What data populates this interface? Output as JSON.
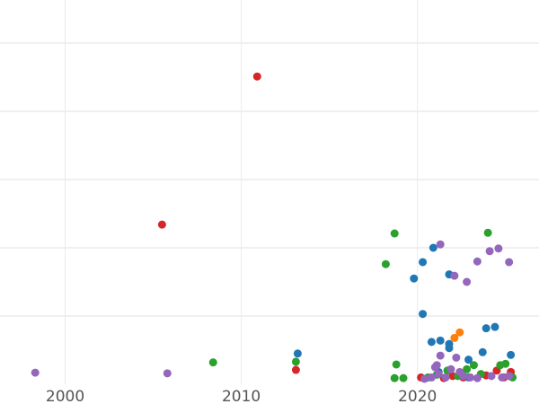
{
  "chart_data": {
    "type": "scatter",
    "title": "",
    "xlabel": "",
    "ylabel": "",
    "x_ticks": [
      "2000",
      "2010",
      "2020"
    ],
    "x_tick_values": [
      2000,
      2010,
      2020
    ],
    "xlim": [
      1996.3,
      2026.9
    ],
    "ylim": [
      -0.3,
      5.63
    ],
    "y_gridlines": [
      1,
      2,
      3,
      4,
      5
    ],
    "grid": true,
    "legend": "none",
    "series": [
      {
        "name": "red",
        "color": "#d62728",
        "points": [
          [
            2010.9,
            4.51
          ],
          [
            2005.5,
            2.34
          ],
          [
            2013.1,
            0.21
          ],
          [
            2020.2,
            0.1
          ],
          [
            2021.5,
            0.09
          ],
          [
            2022.0,
            0.12
          ],
          [
            2022.6,
            0.1
          ],
          [
            2023.9,
            0.13
          ],
          [
            2024.5,
            0.2
          ],
          [
            2025.3,
            0.18
          ],
          [
            2024.9,
            0.1
          ]
        ]
      },
      {
        "name": "green",
        "color": "#2ca02c",
        "points": [
          [
            2008.4,
            0.32
          ],
          [
            2013.1,
            0.33
          ],
          [
            2018.7,
            2.21
          ],
          [
            2018.2,
            1.76
          ],
          [
            2024.0,
            2.22
          ],
          [
            2018.8,
            0.29
          ],
          [
            2018.7,
            0.09
          ],
          [
            2019.2,
            0.09
          ],
          [
            2020.6,
            0.1
          ],
          [
            2021.7,
            0.2
          ],
          [
            2022.8,
            0.22
          ],
          [
            2023.2,
            0.28
          ],
          [
            2023.6,
            0.15
          ],
          [
            2024.7,
            0.28
          ],
          [
            2025.0,
            0.3
          ],
          [
            2025.4,
            0.1
          ],
          [
            2022.3,
            0.12
          ],
          [
            2021.1,
            0.14
          ]
        ]
      },
      {
        "name": "blue",
        "color": "#1f77b4",
        "points": [
          [
            2013.2,
            0.45
          ],
          [
            2020.9,
            2.0
          ],
          [
            2020.3,
            1.79
          ],
          [
            2019.8,
            1.55
          ],
          [
            2020.3,
            1.03
          ],
          [
            2021.8,
            1.61
          ],
          [
            2023.9,
            0.82
          ],
          [
            2024.4,
            0.84
          ],
          [
            2020.8,
            0.62
          ],
          [
            2021.3,
            0.64
          ],
          [
            2021.8,
            0.53
          ],
          [
            2021.8,
            0.59
          ],
          [
            2023.7,
            0.47
          ],
          [
            2022.9,
            0.36
          ],
          [
            2025.3,
            0.43
          ],
          [
            2021.2,
            0.18
          ],
          [
            2022.9,
            0.1
          ]
        ]
      },
      {
        "name": "orange",
        "color": "#ff7f0e",
        "points": [
          [
            2022.4,
            0.76
          ],
          [
            2022.1,
            0.68
          ]
        ]
      },
      {
        "name": "purple",
        "color": "#9467bd",
        "points": [
          [
            1998.3,
            0.17
          ],
          [
            2005.8,
            0.16
          ],
          [
            2021.3,
            2.05
          ],
          [
            2024.6,
            1.99
          ],
          [
            2024.1,
            1.95
          ],
          [
            2023.4,
            1.8
          ],
          [
            2025.2,
            1.79
          ],
          [
            2022.1,
            1.59
          ],
          [
            2022.8,
            1.5
          ],
          [
            2021.3,
            0.42
          ],
          [
            2021.1,
            0.28
          ],
          [
            2022.2,
            0.39
          ],
          [
            2020.4,
            0.08
          ],
          [
            2020.8,
            0.1
          ],
          [
            2021.2,
            0.15
          ],
          [
            2021.6,
            0.1
          ],
          [
            2021.9,
            0.22
          ],
          [
            2022.4,
            0.18
          ],
          [
            2023.0,
            0.1
          ],
          [
            2023.4,
            0.09
          ],
          [
            2024.2,
            0.12
          ],
          [
            2024.8,
            0.1
          ],
          [
            2025.2,
            0.12
          ],
          [
            2021.0,
            0.25
          ],
          [
            2022.6,
            0.12
          ]
        ]
      }
    ]
  }
}
